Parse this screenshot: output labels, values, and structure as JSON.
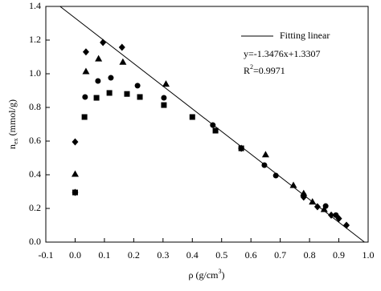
{
  "chart_data": {
    "type": "scatter",
    "x_label": {
      "main": "ρ (g/cm",
      "sup": "3",
      "end": ")"
    },
    "y_label": {
      "main": "n",
      "sub": "ex",
      "end": " (mmol/g)"
    },
    "annotations": {
      "equation": "y=-1.3476x+1.3307",
      "r2": {
        "main": "R",
        "sup": "2",
        "end": "=0.9971"
      }
    },
    "xlim": [
      -0.1,
      1.0
    ],
    "xticks": [
      -0.1,
      {
        "value": 0,
        "label": "0.0"
      },
      0.1,
      0.2,
      0.3,
      0.4,
      0.5,
      0.6,
      0.7,
      0.8,
      0.9,
      {
        "value": 1,
        "label": "1.0"
      }
    ],
    "ylim": [
      0,
      1.4
    ],
    "yticks": [
      {
        "value": 0,
        "label": "0.0"
      },
      0.2,
      0.4,
      0.6,
      0.8,
      {
        "value": 1,
        "label": "1.0"
      },
      1.2,
      1.4
    ],
    "color": "#000000",
    "series": [
      {
        "marker": "diamond",
        "x": [
          0.0,
          0.0,
          0.037,
          0.095,
          0.16,
          0.567,
          0.78,
          0.827,
          0.874,
          0.9,
          0.926
        ],
        "values": [
          0.295,
          0.595,
          1.13,
          1.186,
          1.157,
          0.557,
          0.267,
          0.21,
          0.16,
          0.14,
          0.1
        ]
      },
      {
        "marker": "triangle",
        "x": [
          0.0,
          0.037,
          0.08,
          0.163,
          0.31,
          0.65,
          0.745,
          0.78,
          0.81,
          0.85
        ],
        "values": [
          0.405,
          1.014,
          1.09,
          1.07,
          0.94,
          0.52,
          0.338,
          0.29,
          0.24,
          0.195
        ]
      },
      {
        "marker": "circle",
        "x": [
          0.0,
          0.034,
          0.078,
          0.122,
          0.213,
          0.303,
          0.47,
          0.646,
          0.685,
          0.78,
          0.855,
          0.89
        ],
        "values": [
          0.295,
          0.862,
          0.957,
          0.976,
          0.929,
          0.857,
          0.695,
          0.457,
          0.395,
          0.28,
          0.214,
          0.16
        ]
      },
      {
        "marker": "square",
        "x": [
          0.0,
          0.032,
          0.073,
          0.117,
          0.177,
          0.221,
          0.303,
          0.4,
          0.479,
          0.567
        ],
        "values": [
          0.295,
          0.743,
          0.857,
          0.886,
          0.88,
          0.862,
          0.814,
          0.743,
          0.662,
          0.557
        ]
      }
    ],
    "fit": {
      "name": "Fitting linear",
      "x": [
        -0.0514,
        0.9875
      ],
      "values": [
        1.4,
        0
      ]
    }
  }
}
